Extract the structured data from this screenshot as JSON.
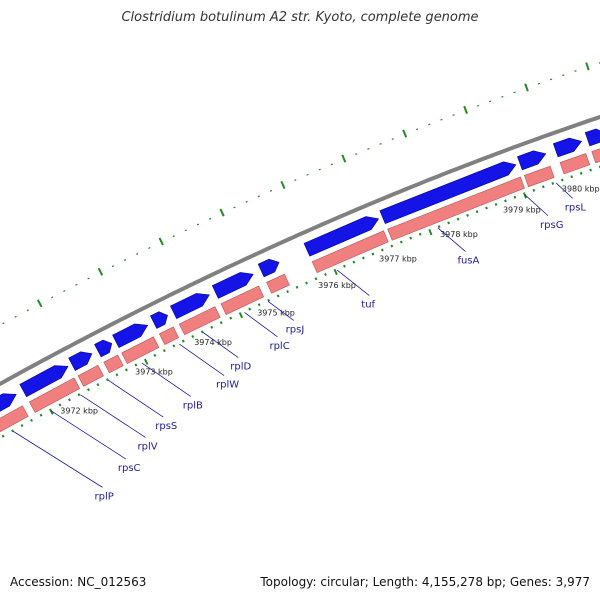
{
  "title": "Clostridium botulinum A2 str. Kyoto, complete genome",
  "accession": "Accession: NC_012563",
  "topology": "Topology: circular; Length: 4,155,278 bp; Genes: 3,977",
  "colors": {
    "cds_forward": "#1414e6",
    "cds_reverse": "#f08080",
    "backbone": "#808080",
    "ticks": "#228b22",
    "label": "#1a1aa8"
  },
  "kbp_labels": [
    "3972 kbp",
    "3973 kbp",
    "3974 kbp",
    "3975 kbp",
    "3976 kbp",
    "3977 kbp",
    "3978 kbp",
    "3979 kbp",
    "3980 kbp"
  ],
  "genes": [
    "rplP",
    "rpsC",
    "rplV",
    "rpsS",
    "rplB",
    "rplW",
    "rplD",
    "rplC",
    "rpsJ",
    "tuf",
    "fusA",
    "rpsG",
    "rpsL"
  ]
}
